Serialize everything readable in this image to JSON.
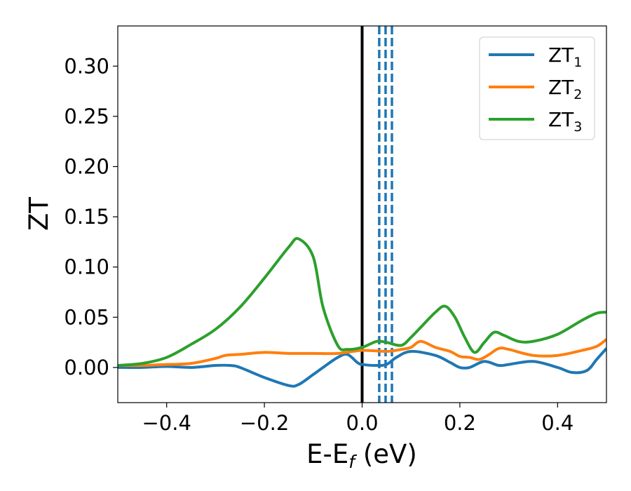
{
  "chart_data": {
    "type": "line",
    "xlabel": {
      "main": "E-E",
      "sub": "f",
      "unit": " (eV)"
    },
    "ylabel": "ZT",
    "xlim": [
      -0.5,
      0.5
    ],
    "ylim": [
      -0.035,
      0.34
    ],
    "xticks": [
      -0.4,
      -0.2,
      0.0,
      0.2,
      0.4
    ],
    "xtick_labels": [
      "−0.4",
      "−0.2",
      "0.0",
      "0.2",
      "0.4"
    ],
    "yticks": [
      0.0,
      0.05,
      0.1,
      0.15,
      0.2,
      0.25,
      0.3
    ],
    "ytick_labels": [
      "0.00",
      "0.05",
      "0.10",
      "0.15",
      "0.20",
      "0.25",
      "0.30"
    ],
    "legend_position": "top-right",
    "reference_lines": [
      {
        "x": 0.0,
        "style": "solid",
        "color": "#000000"
      },
      {
        "x": 0.035,
        "style": "dashed",
        "color": "#1f77b4"
      },
      {
        "x": 0.048,
        "style": "dashed",
        "color": "#1f77b4"
      },
      {
        "x": 0.061,
        "style": "dashed",
        "color": "#1f77b4"
      }
    ],
    "series": [
      {
        "name": "ZT",
        "sub": "1",
        "color": "#1f77b4",
        "x": [
          -0.5,
          -0.45,
          -0.4,
          -0.35,
          -0.3,
          -0.27,
          -0.25,
          -0.2,
          -0.15,
          -0.13,
          -0.1,
          -0.08,
          -0.05,
          -0.03,
          -0.01,
          0.0,
          0.03,
          0.05,
          0.07,
          0.1,
          0.15,
          0.18,
          0.2,
          0.22,
          0.25,
          0.28,
          0.3,
          0.35,
          0.4,
          0.43,
          0.46,
          0.48,
          0.5
        ],
        "y": [
          0.0,
          0.0,
          0.001,
          0.0,
          0.002,
          0.002,
          0.0,
          -0.01,
          -0.018,
          -0.017,
          -0.007,
          0.0,
          0.01,
          0.013,
          0.005,
          0.003,
          0.002,
          0.003,
          0.01,
          0.016,
          0.012,
          0.005,
          0.0,
          0.0,
          0.006,
          0.002,
          0.003,
          0.006,
          0.0,
          -0.005,
          -0.003,
          0.008,
          0.019
        ]
      },
      {
        "name": "ZT",
        "sub": "2",
        "color": "#ff7f0e",
        "x": [
          -0.5,
          -0.45,
          -0.4,
          -0.35,
          -0.3,
          -0.28,
          -0.25,
          -0.2,
          -0.15,
          -0.1,
          -0.05,
          0.0,
          0.05,
          0.08,
          0.1,
          0.12,
          0.15,
          0.18,
          0.2,
          0.22,
          0.24,
          0.26,
          0.28,
          0.3,
          0.35,
          0.4,
          0.45,
          0.48,
          0.5
        ],
        "y": [
          0.002,
          0.002,
          0.003,
          0.004,
          0.009,
          0.012,
          0.013,
          0.015,
          0.014,
          0.014,
          0.014,
          0.017,
          0.016,
          0.018,
          0.02,
          0.026,
          0.02,
          0.016,
          0.011,
          0.01,
          0.008,
          0.013,
          0.019,
          0.018,
          0.012,
          0.012,
          0.017,
          0.021,
          0.028
        ]
      },
      {
        "name": "ZT",
        "sub": "3",
        "color": "#2ca02c",
        "x": [
          -0.5,
          -0.45,
          -0.4,
          -0.35,
          -0.3,
          -0.25,
          -0.2,
          -0.15,
          -0.13,
          -0.1,
          -0.08,
          -0.05,
          -0.03,
          0.0,
          0.03,
          0.05,
          0.08,
          0.1,
          0.12,
          0.15,
          0.17,
          0.19,
          0.21,
          0.23,
          0.25,
          0.27,
          0.29,
          0.32,
          0.35,
          0.4,
          0.45,
          0.48,
          0.5
        ],
        "y": [
          0.002,
          0.004,
          0.01,
          0.023,
          0.038,
          0.06,
          0.089,
          0.12,
          0.128,
          0.11,
          0.06,
          0.022,
          0.018,
          0.02,
          0.026,
          0.025,
          0.022,
          0.03,
          0.04,
          0.055,
          0.061,
          0.05,
          0.03,
          0.015,
          0.025,
          0.035,
          0.032,
          0.026,
          0.026,
          0.033,
          0.047,
          0.054,
          0.055
        ]
      }
    ]
  }
}
